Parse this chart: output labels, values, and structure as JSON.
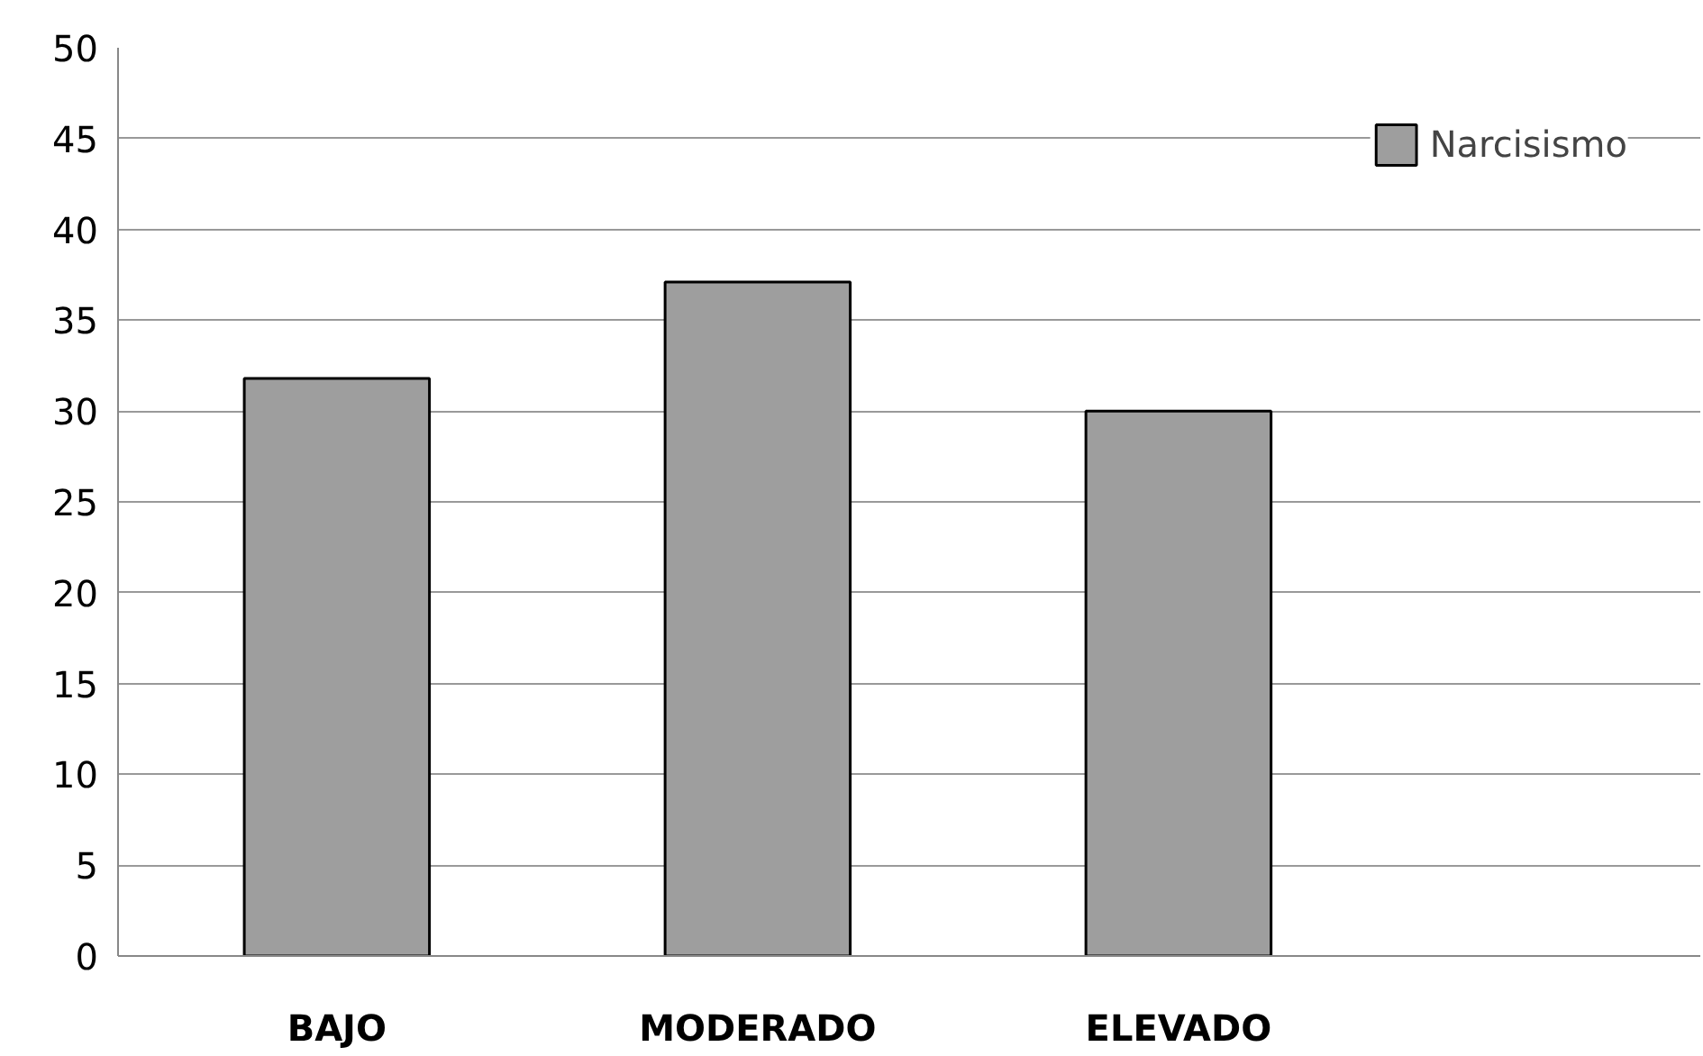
{
  "chart_data": {
    "type": "bar",
    "categories": [
      "BAJO",
      "MODERADO",
      "ELEVADO"
    ],
    "series": [
      {
        "name": "Narcisismo",
        "color": "#9e9e9e",
        "values": [
          31.8,
          37.1,
          30.0
        ]
      }
    ],
    "ylim": [
      0,
      50
    ],
    "yticks": [
      0,
      5,
      10,
      15,
      20,
      25,
      30,
      35,
      40,
      45,
      50
    ],
    "grid": "y",
    "legend": "top right"
  }
}
